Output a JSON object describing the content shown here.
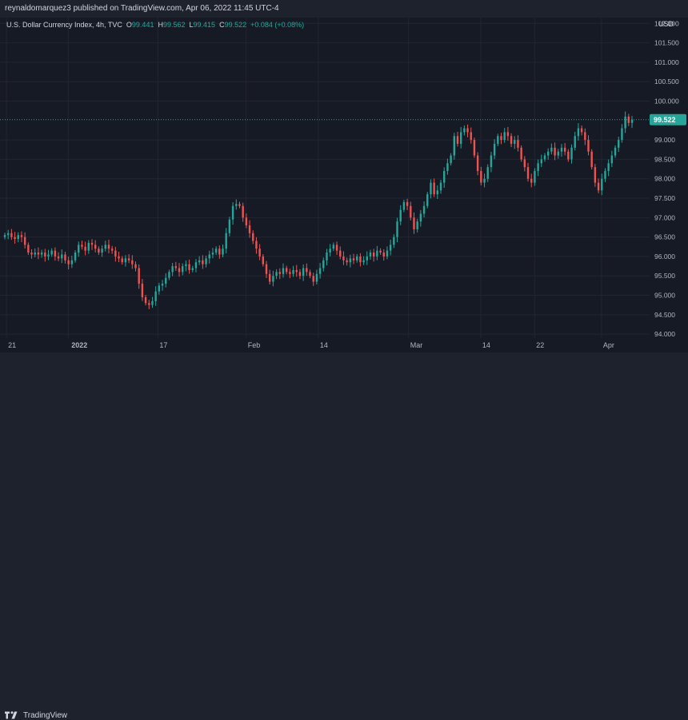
{
  "header": {
    "published_text": "reynaldomarquez3 published on TradingView.com, Apr 06, 2022 11:45 UTC-4"
  },
  "legend": {
    "symbol": "U.S. Dollar Currency Index, 4h, TVC",
    "open_label": "O",
    "open_value": "99.441",
    "high_label": "H",
    "high_value": "99.562",
    "low_label": "L",
    "low_value": "99.415",
    "close_label": "C",
    "close_value": "99.522",
    "change": "+0.084 (+0.08%)"
  },
  "price_axis": {
    "currency": "USD",
    "current_price_label": "99.522",
    "ticks": [
      "102.000",
      "101.500",
      "101.000",
      "100.500",
      "100.000",
      "99.000",
      "98.500",
      "98.000",
      "97.500",
      "97.000",
      "96.500",
      "96.000",
      "95.500",
      "95.000",
      "94.500",
      "94.000"
    ]
  },
  "time_axis": {
    "labels": [
      "21",
      "2022",
      "17",
      "Feb",
      "14",
      "Mar",
      "14",
      "22",
      "Apr"
    ]
  },
  "footer": {
    "brand": "TradingView",
    "brand_icon": "tradingview-logo-icon"
  },
  "colors": {
    "up": "#26a69a",
    "down": "#ef5350",
    "price_line": "#26a69a",
    "background": "#161a25"
  },
  "chart_data": {
    "type": "candlestick",
    "title": "U.S. Dollar Currency Index, 4h, TVC",
    "ylabel": "USD",
    "ylim": [
      93.9,
      102.15
    ],
    "grid": true,
    "last_price": 99.522,
    "x_labels": [
      "21",
      "2022",
      "17",
      "Feb",
      "14",
      "Mar",
      "14",
      "22",
      "Apr"
    ],
    "close_series": [
      96.55,
      96.6,
      96.5,
      96.45,
      96.55,
      96.5,
      96.3,
      96.1,
      96.05,
      96.1,
      96.05,
      96.1,
      96.0,
      96.05,
      96.15,
      96.0,
      95.95,
      96.05,
      95.9,
      95.8,
      95.9,
      96.1,
      96.3,
      96.25,
      96.15,
      96.35,
      96.3,
      96.2,
      96.1,
      96.2,
      96.3,
      96.2,
      96.15,
      96.0,
      95.95,
      95.85,
      95.95,
      95.9,
      95.8,
      95.7,
      95.3,
      94.95,
      94.8,
      94.75,
      94.85,
      95.1,
      95.25,
      95.3,
      95.45,
      95.6,
      95.75,
      95.7,
      95.6,
      95.75,
      95.8,
      95.65,
      95.7,
      95.85,
      95.9,
      95.8,
      95.95,
      96.05,
      96.1,
      96.2,
      96.05,
      96.2,
      96.6,
      96.95,
      97.3,
      97.35,
      97.3,
      97.0,
      96.8,
      96.6,
      96.4,
      96.2,
      96.0,
      95.8,
      95.55,
      95.35,
      95.5,
      95.6,
      95.55,
      95.7,
      95.6,
      95.55,
      95.65,
      95.6,
      95.5,
      95.7,
      95.6,
      95.5,
      95.35,
      95.55,
      95.7,
      95.9,
      96.1,
      96.2,
      96.3,
      96.15,
      96.0,
      95.9,
      95.85,
      95.95,
      95.9,
      96.0,
      95.85,
      95.9,
      96.0,
      96.1,
      96.0,
      96.15,
      96.1,
      96.0,
      96.15,
      96.3,
      96.5,
      96.9,
      97.2,
      97.4,
      97.3,
      97.0,
      96.7,
      96.9,
      97.1,
      97.3,
      97.6,
      97.9,
      97.6,
      97.7,
      97.9,
      98.2,
      98.4,
      98.6,
      99.1,
      98.9,
      99.2,
      99.3,
      99.2,
      99.0,
      98.6,
      98.2,
      97.9,
      98.0,
      98.3,
      98.6,
      98.9,
      99.1,
      99.0,
      99.2,
      99.1,
      98.9,
      99.0,
      98.8,
      98.5,
      98.3,
      98.0,
      97.9,
      98.2,
      98.4,
      98.5,
      98.6,
      98.7,
      98.8,
      98.6,
      98.7,
      98.8,
      98.7,
      98.5,
      98.8,
      99.1,
      99.3,
      99.2,
      99.0,
      98.7,
      98.3,
      97.9,
      97.7,
      98.0,
      98.2,
      98.4,
      98.6,
      98.8,
      99.0,
      99.3,
      99.6,
      99.44,
      99.52
    ]
  }
}
